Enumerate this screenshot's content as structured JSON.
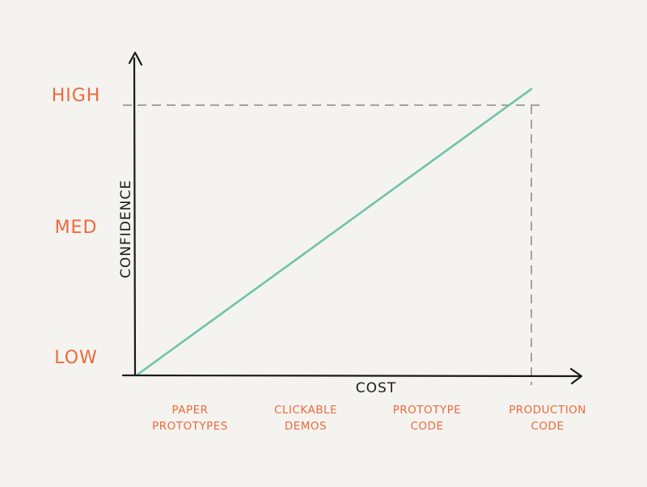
{
  "chart_data": {
    "type": "line",
    "xlabel": "COST",
    "ylabel": "CONFIDENCE",
    "x_categories": [
      "PAPER PROTOTYPES",
      "CLICKABLE DEMOS",
      "PROTOTYPE CODE",
      "PRODUCTION CODE"
    ],
    "x_category_lines": [
      [
        "PAPER",
        "PROTOTYPES"
      ],
      [
        "CLICKABLE",
        "DEMOS"
      ],
      [
        "PROTOTYPE",
        "CODE"
      ],
      [
        "PRODUCTION",
        "CODE"
      ]
    ],
    "y_categories": [
      "LOW",
      "MED",
      "HIGH"
    ],
    "series": [
      {
        "line_color": "#6fc4a6",
        "points": [
          {
            "x": 0,
            "y": 0
          },
          {
            "x": 1,
            "y": 1.06
          }
        ]
      }
    ],
    "reference": {
      "x_category": "PRODUCTION CODE",
      "y_category": "HIGH",
      "style": "dashed",
      "color": "#a8a29d"
    },
    "colors": {
      "axis": "#1a1a1a",
      "tick_labels": "#ec6a3c",
      "background": "#f5f3ef"
    },
    "grid": false,
    "legend": "none"
  }
}
